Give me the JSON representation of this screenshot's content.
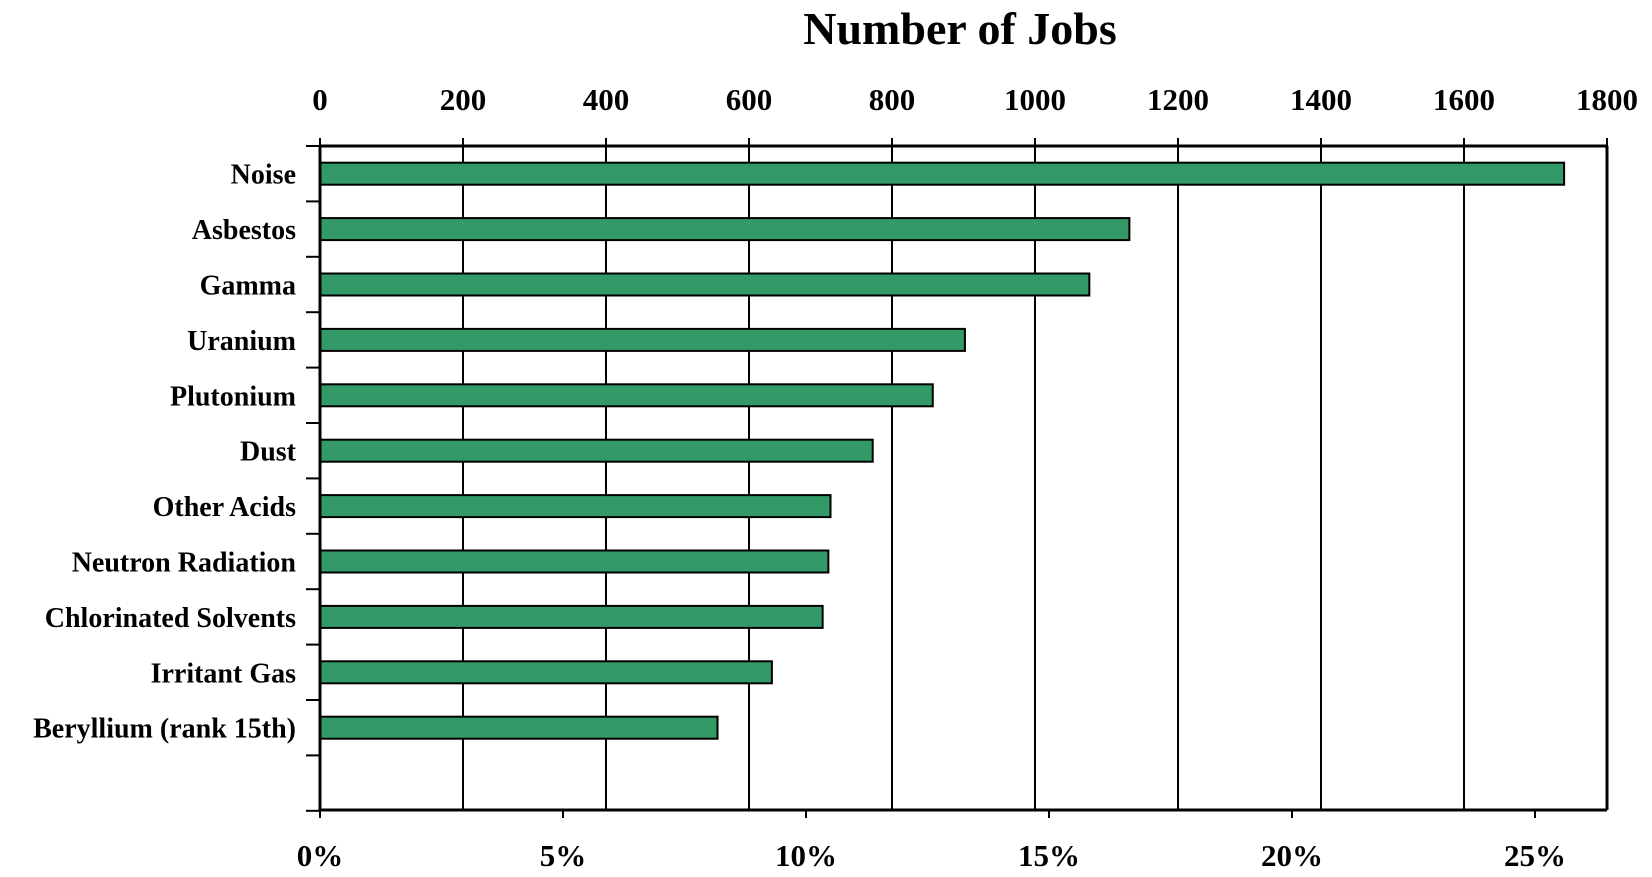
{
  "chart_data": {
    "type": "bar",
    "orientation": "horizontal",
    "title": "Number of Jobs",
    "top_axis": {
      "ticks": [
        "0",
        "200",
        "400",
        "600",
        "800",
        "1000",
        "1200",
        "1400",
        "1600",
        "1800"
      ],
      "range": [
        0,
        1800
      ]
    },
    "bottom_axis": {
      "ticks": [
        "0%",
        "5%",
        "10%",
        "15%",
        "20%",
        "25%"
      ]
    },
    "categories": [
      "Noise",
      "Asbestos",
      "Gamma",
      "Uranium",
      "Plutonium",
      "Dust",
      "Other Acids",
      "Neutron Radiation",
      "Chlorinated Solvents",
      "Irritant Gas",
      "Beryllium (rank 15th)"
    ],
    "values": [
      1740,
      1132,
      1076,
      902,
      857,
      773,
      714,
      711,
      703,
      632,
      556
    ],
    "bar_color": "#339966",
    "grid": true
  }
}
